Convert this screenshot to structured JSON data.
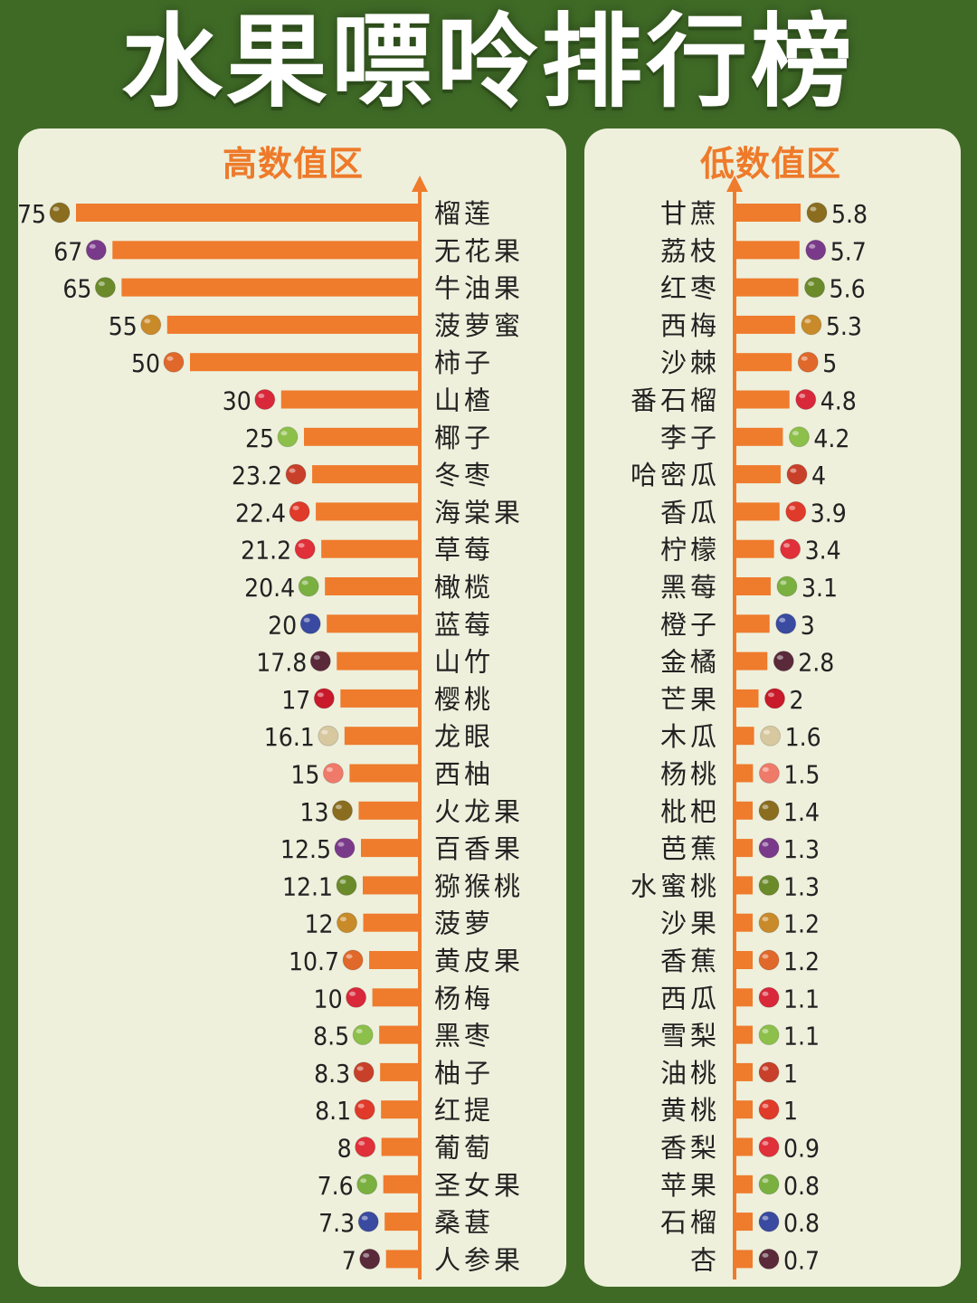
{
  "title": "水果嘌呤排行榜",
  "colors": {
    "background": "#3f6a26",
    "panel": "#eef0dc",
    "bar": "#ef7b2c",
    "heading": "#ee7a2a"
  },
  "chart_data": [
    {
      "type": "bar",
      "title": "高数值区",
      "orientation": "horizontal",
      "categories": [
        "榴莲",
        "无花果",
        "牛油果",
        "菠萝蜜",
        "柿子",
        "山楂",
        "椰子",
        "冬枣",
        "海棠果",
        "草莓",
        "橄榄",
        "蓝莓",
        "山竹",
        "樱桃",
        "龙眼",
        "西柚",
        "火龙果",
        "百香果",
        "猕猴桃",
        "菠萝",
        "黄皮果",
        "杨梅",
        "黑枣",
        "柚子",
        "红提",
        "葡萄",
        "圣女果",
        "桑葚",
        "人参果"
      ],
      "values": [
        75,
        67,
        65,
        55,
        50,
        30,
        25,
        23.2,
        22.4,
        21.2,
        20.4,
        20,
        17.8,
        17,
        16.1,
        15,
        13,
        12.5,
        12.1,
        12,
        10.7,
        10,
        8.5,
        8.3,
        8.1,
        8,
        7.6,
        7.3,
        7
      ],
      "labels": [
        "75",
        "67",
        "65",
        "55",
        "50",
        "30",
        "25",
        "23.2",
        "22.4",
        "21.2",
        "20.4",
        "20",
        "17.8",
        "17",
        "16.1",
        "15",
        "13",
        "12.5",
        "12.1",
        "12",
        "10.7",
        "10",
        "8.5",
        "8.3",
        "8.1",
        "8",
        "7.6",
        "7.3",
        "7"
      ]
    },
    {
      "type": "bar",
      "title": "低数值区",
      "orientation": "horizontal",
      "categories": [
        "甘蔗",
        "荔枝",
        "红枣",
        "西梅",
        "沙棘",
        "番石榴",
        "李子",
        "哈密瓜",
        "香瓜",
        "柠檬",
        "黑莓",
        "橙子",
        "金橘",
        "芒果",
        "木瓜",
        "杨桃",
        "枇杷",
        "芭蕉",
        "水蜜桃",
        "沙果",
        "香蕉",
        "西瓜",
        "雪梨",
        "油桃",
        "黄桃",
        "香梨",
        "苹果",
        "石榴",
        "杏"
      ],
      "values": [
        5.8,
        5.7,
        5.6,
        5.3,
        5,
        4.8,
        4.2,
        4,
        3.9,
        3.4,
        3.1,
        3,
        2.8,
        2,
        1.6,
        1.5,
        1.4,
        1.3,
        1.3,
        1.2,
        1.2,
        1.1,
        1.1,
        1,
        1,
        0.9,
        0.8,
        0.8,
        0.7
      ],
      "labels": [
        "5.8",
        "5.7",
        "5.6",
        "5.3",
        "5",
        "4.8",
        "4.2",
        "4",
        "3.9",
        "3.4",
        "3.1",
        "3",
        "2.8",
        "2",
        "1.6",
        "1.5",
        "1.4",
        "1.3",
        "1.3",
        "1.2",
        "1.2",
        "1.1",
        "1.1",
        "1",
        "1",
        "0.9",
        "0.8",
        "0.8",
        "0.7"
      ]
    }
  ]
}
